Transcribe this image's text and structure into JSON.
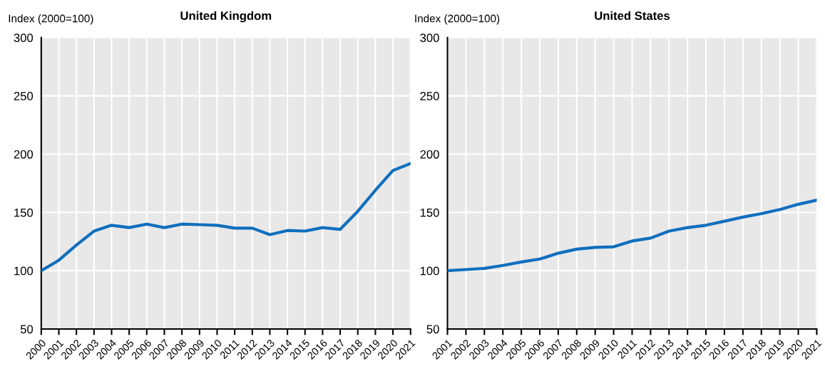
{
  "chart_data": [
    {
      "type": "line",
      "title": "United Kingdom",
      "ylabel": "Index (2000=100)",
      "categories": [
        "2000",
        "2001",
        "2002",
        "2003",
        "2004",
        "2005",
        "2006",
        "2007",
        "2008",
        "2009",
        "2010",
        "2011",
        "2012",
        "2013",
        "2014",
        "2015",
        "2016",
        "2017",
        "2018",
        "2019",
        "2020",
        "2021"
      ],
      "series": [
        {
          "color": "#0f6fbe",
          "values": [
            100,
            109,
            122,
            134,
            139,
            137,
            140,
            137,
            140,
            139.5,
            139,
            136.5,
            136.5,
            131,
            134.5,
            134,
            137,
            135.5,
            151,
            169,
            186,
            192
          ]
        }
      ],
      "ylim": [
        50,
        300
      ],
      "yticks": [
        50,
        100,
        150,
        200,
        250,
        300
      ],
      "grid": true
    },
    {
      "type": "line",
      "title": "United States",
      "ylabel": "Index (2000=100)",
      "categories": [
        "2001",
        "2002",
        "2003",
        "2004",
        "2005",
        "2006",
        "2007",
        "2008",
        "2009",
        "2010",
        "2011",
        "2012",
        "2013",
        "2014",
        "2015",
        "2016",
        "2017",
        "2018",
        "2019",
        "2020",
        "2021"
      ],
      "series": [
        {
          "color": "#0f6fbe",
          "values": [
            100,
            101,
            102,
            104.5,
            107.5,
            110,
            115,
            118.5,
            120,
            120.5,
            125.5,
            128,
            134,
            137,
            139,
            142.5,
            146,
            149,
            152.5,
            157,
            160.5
          ]
        }
      ],
      "ylim": [
        50,
        300
      ],
      "yticks": [
        50,
        100,
        150,
        200,
        250,
        300
      ],
      "grid": true
    }
  ]
}
